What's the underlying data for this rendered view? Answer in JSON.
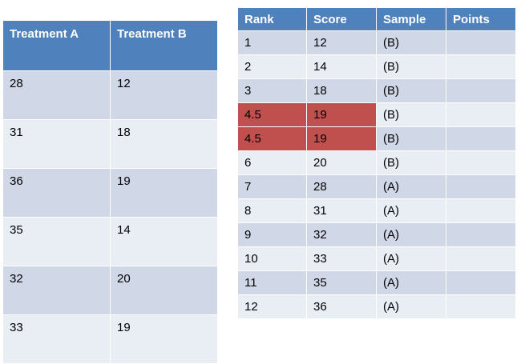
{
  "left_table": {
    "headers": [
      "Treatment A",
      "Treatment B"
    ],
    "rows": [
      [
        "28",
        "12"
      ],
      [
        "31",
        "18"
      ],
      [
        "36",
        "19"
      ],
      [
        "35",
        "14"
      ],
      [
        "32",
        "20"
      ],
      [
        "33",
        "19"
      ]
    ]
  },
  "right_table": {
    "headers": [
      "Rank",
      "Score",
      "Sample",
      "Points"
    ],
    "rows": [
      [
        "1",
        "12",
        "(B)",
        ""
      ],
      [
        "2",
        "14",
        "(B)",
        ""
      ],
      [
        "3",
        "18",
        "(B)",
        ""
      ],
      [
        "4.5",
        "19",
        "(B)",
        ""
      ],
      [
        "4.5",
        "19",
        "(B)",
        ""
      ],
      [
        "6",
        "20",
        "(B)",
        ""
      ],
      [
        "7",
        "28",
        "(A)",
        ""
      ],
      [
        "8",
        "31",
        "(A)",
        ""
      ],
      [
        "9",
        "32",
        "(A)",
        ""
      ],
      [
        "10",
        "33",
        "(A)",
        ""
      ],
      [
        "11",
        "35",
        "(A)",
        ""
      ],
      [
        "12",
        "36",
        "(A)",
        ""
      ]
    ],
    "highlight_color": "#c0504d",
    "header_color": "#4f81bd"
  }
}
